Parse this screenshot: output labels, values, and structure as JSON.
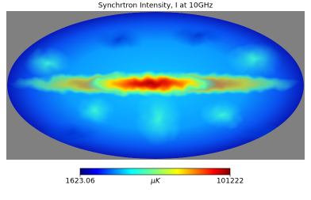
{
  "chart_data": {
    "type": "map",
    "projection": "mollweide",
    "title": "Synchrtron Intensity, I at 10GHz",
    "cmap": "jet",
    "clim": [
      1623.06,
      101222
    ],
    "cticks": [
      1623.06,
      101222
    ],
    "unit": "μK",
    "background": "#808080"
  }
}
